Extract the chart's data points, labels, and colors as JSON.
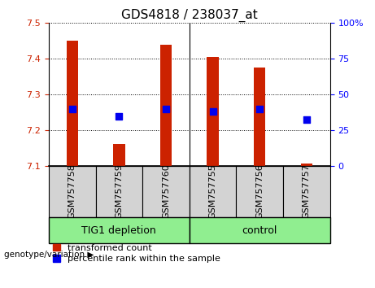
{
  "title": "GDS4818 / 238037_at",
  "samples": [
    "GSM757758",
    "GSM757759",
    "GSM757760",
    "GSM757755",
    "GSM757756",
    "GSM757757"
  ],
  "bar_values": [
    7.45,
    7.16,
    7.44,
    7.405,
    7.375,
    7.105
  ],
  "bar_bottom": 7.1,
  "blue_dot_values": [
    7.258,
    7.238,
    7.258,
    7.252,
    7.258,
    7.228
  ],
  "ylim": [
    7.1,
    7.5
  ],
  "y2lim": [
    0,
    100
  ],
  "yticks": [
    7.1,
    7.2,
    7.3,
    7.4,
    7.5
  ],
  "y2ticks": [
    0,
    25,
    50,
    75,
    100
  ],
  "bar_color": "#cc2200",
  "dot_color": "#0000ee",
  "group_fill": "#90ee90",
  "label_box_fill": "#d3d3d3",
  "title_fontsize": 11,
  "tick_fontsize": 8,
  "group_fontsize": 9,
  "legend_fontsize": 8,
  "bar_width": 0.25,
  "dot_size": 35,
  "legend_items": [
    {
      "label": "transformed count",
      "color": "#cc2200"
    },
    {
      "label": "percentile rank within the sample",
      "color": "#0000ee"
    }
  ]
}
